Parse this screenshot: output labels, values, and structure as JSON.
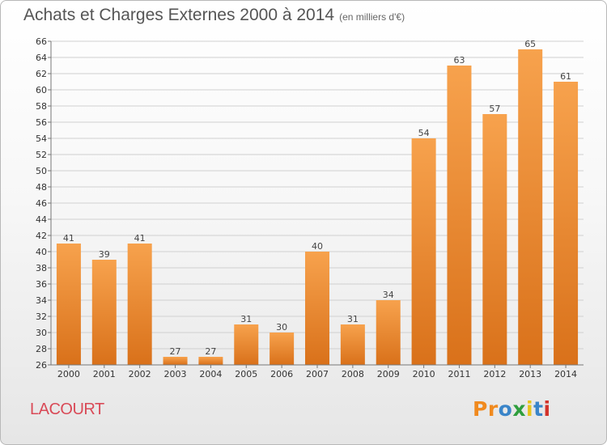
{
  "header": {
    "title": "Achats et Charges Externes 2000 à 2014",
    "subtitle": "(en milliers d'€)"
  },
  "footer": {
    "commune": "LACOURT",
    "brand": "Proxiti",
    "brand_colors": [
      "#f08a1f",
      "#f08a1f",
      "#3a85c9",
      "#2f9e3d",
      "#e8c41b",
      "#3a85c9",
      "#d2332b"
    ]
  },
  "colors": {
    "bar_light": "#f7a24d",
    "bar_dark": "#d9711a",
    "grid": "#d0d0d0",
    "axis": "#777777"
  },
  "chart_data": {
    "type": "bar",
    "categories": [
      "2000",
      "2001",
      "2002",
      "2003",
      "2004",
      "2005",
      "2006",
      "2007",
      "2008",
      "2009",
      "2010",
      "2011",
      "2012",
      "2013",
      "2014"
    ],
    "values": [
      41,
      39,
      41,
      27,
      27,
      31,
      30,
      40,
      31,
      34,
      54,
      63,
      57,
      65,
      61
    ],
    "ylim": [
      26,
      66
    ],
    "yticks": [
      26,
      28,
      30,
      32,
      34,
      36,
      38,
      40,
      42,
      44,
      46,
      48,
      50,
      52,
      54,
      56,
      58,
      60,
      62,
      64,
      66
    ],
    "grid": true,
    "data_labels": true
  }
}
